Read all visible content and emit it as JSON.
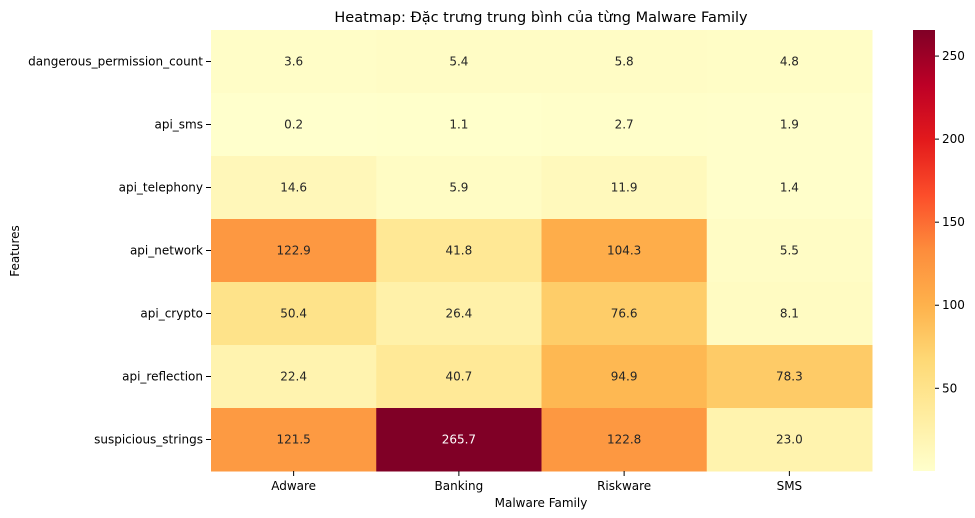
{
  "chart_data": {
    "type": "heatmap",
    "title": "Heatmap: Đặc trưng trung bình của từng Malware Family",
    "xlabel": "Malware Family",
    "ylabel": "Features",
    "x_categories": [
      "Adware",
      "Banking",
      "Riskware",
      "SMS"
    ],
    "y_categories": [
      "dangerous_permission_count",
      "api_sms",
      "api_telephony",
      "api_network",
      "api_crypto",
      "api_reflection",
      "suspicious_strings"
    ],
    "values": [
      [
        3.6,
        5.4,
        5.8,
        4.8
      ],
      [
        0.2,
        1.1,
        2.7,
        1.9
      ],
      [
        14.6,
        5.9,
        11.9,
        1.4
      ],
      [
        122.9,
        41.8,
        104.3,
        5.5
      ],
      [
        50.4,
        26.4,
        76.6,
        8.1
      ],
      [
        22.4,
        40.7,
        94.9,
        78.3
      ],
      [
        121.5,
        265.7,
        122.8,
        23.0
      ]
    ],
    "colormap": "YlOrRd",
    "vmin": 0.2,
    "vmax": 265.7,
    "colorbar_ticks": [
      50,
      100,
      150,
      200,
      250
    ],
    "annotate": true
  }
}
